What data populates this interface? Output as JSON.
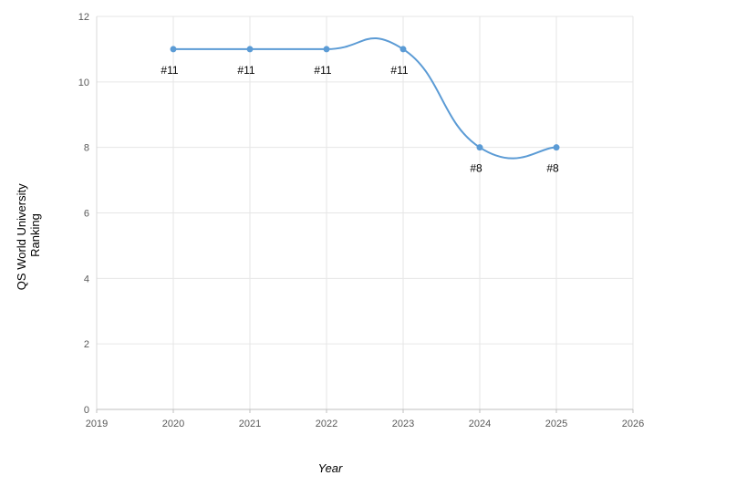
{
  "chart_data": {
    "type": "line",
    "title": "",
    "xlabel": "Year",
    "ylabel_lines": [
      "QS World University",
      "Ranking"
    ],
    "xlim": [
      2019,
      2026
    ],
    "ylim": [
      0,
      12
    ],
    "x_ticks": [
      2019,
      2020,
      2021,
      2022,
      2023,
      2024,
      2025,
      2026
    ],
    "y_ticks": [
      0,
      2,
      4,
      6,
      8,
      10,
      12
    ],
    "grid": true,
    "smooth": true,
    "series": [
      {
        "color": "#5b9bd5",
        "points": [
          {
            "x": 2020,
            "y": 11,
            "label": "#11"
          },
          {
            "x": 2021,
            "y": 11,
            "label": "#11"
          },
          {
            "x": 2022,
            "y": 11,
            "label": "#11"
          },
          {
            "x": 2023,
            "y": 11,
            "label": "#11"
          },
          {
            "x": 2024,
            "y": 8,
            "label": "#8"
          },
          {
            "x": 2025,
            "y": 8,
            "label": "#8"
          }
        ]
      }
    ]
  }
}
